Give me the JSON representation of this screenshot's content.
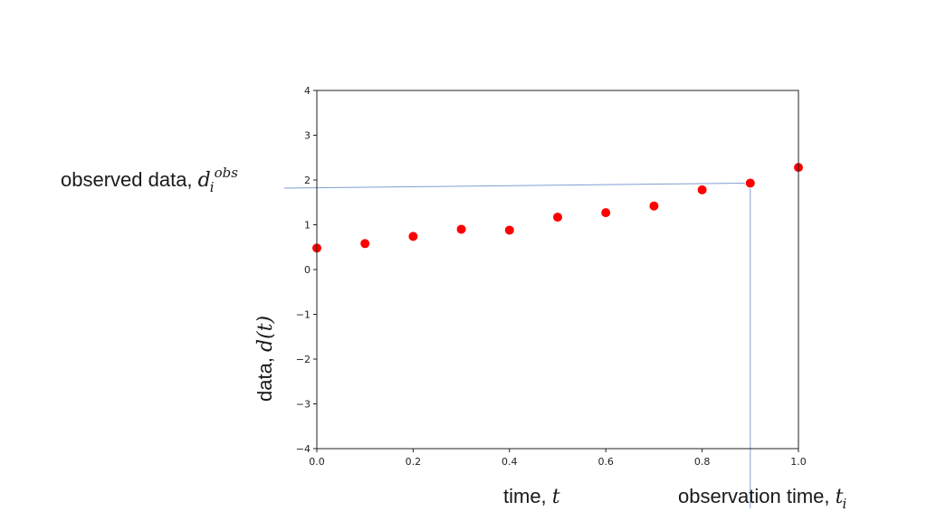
{
  "chart_data": {
    "type": "scatter",
    "series": [
      {
        "name": "data",
        "color": "#ff0000",
        "x": [
          0.0,
          0.1,
          0.2,
          0.3,
          0.4,
          0.5,
          0.6,
          0.7,
          0.8,
          0.9,
          1.0
        ],
        "y": [
          0.48,
          0.58,
          0.74,
          0.9,
          0.88,
          1.17,
          1.27,
          1.42,
          1.78,
          1.93,
          2.28
        ]
      }
    ],
    "xlim": [
      0.0,
      1.0
    ],
    "ylim": [
      -4,
      4
    ],
    "xticks": [
      0.0,
      0.2,
      0.4,
      0.6,
      0.8,
      1.0
    ],
    "xtick_labels": [
      "0.0",
      "0.2",
      "0.4",
      "0.6",
      "0.8",
      "1.0"
    ],
    "yticks": [
      4,
      3,
      2,
      1,
      0,
      -1,
      -2,
      -3,
      -4
    ],
    "ytick_labels": [
      "4",
      "3",
      "2",
      "1",
      "0",
      "−1",
      "−2",
      "−3",
      "−4"
    ],
    "grid": false,
    "xlabel": {
      "prefix": "time, ",
      "symbol": "t"
    },
    "ylabel": {
      "prefix": "data, ",
      "symbol": "d(t)"
    },
    "annotations": {
      "observed": {
        "prefix": "observed data, ",
        "base": "d",
        "sub": "i",
        "sup": "obs",
        "target_x": 0.9,
        "target_y": 1.93
      },
      "obs_time": {
        "prefix": "observation time, ",
        "base": "t",
        "sub": "i",
        "target_x": 0.9
      }
    },
    "annotation_line_color": "#7f9fcf"
  }
}
